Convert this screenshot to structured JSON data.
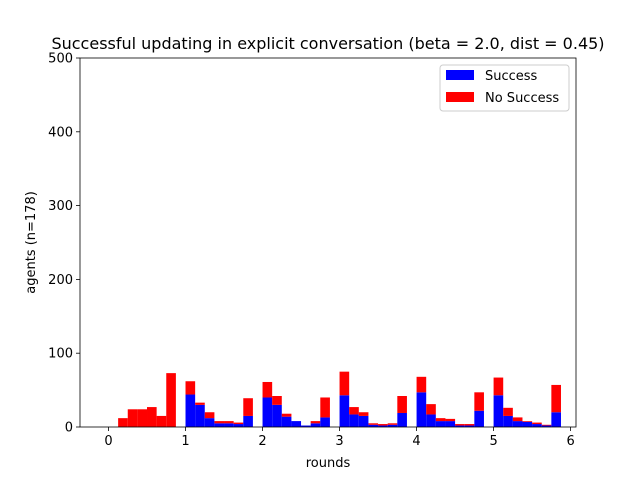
{
  "chart_data": {
    "type": "bar",
    "stacked": true,
    "title": "Successful updating in explicit conversation (beta = 2.0, dist = 0.45)",
    "xlabel": "rounds",
    "ylabel": "agents (n=178)",
    "xlim": [
      -0.37,
      6.07
    ],
    "ylim": [
      0,
      500
    ],
    "xticks": [
      0,
      1,
      2,
      3,
      4,
      5,
      6
    ],
    "xtick_labels": [
      "0",
      "1",
      "2",
      "3",
      "4",
      "5",
      "6"
    ],
    "yticks": [
      0,
      100,
      200,
      300,
      400,
      500
    ],
    "ytick_labels": [
      "0",
      "100",
      "200",
      "300",
      "400",
      "500"
    ],
    "bar_width": 0.125,
    "x": [
      0.0625,
      0.1875,
      0.3125,
      0.4375,
      0.5625,
      0.6875,
      0.8125,
      0.9375,
      1.0625,
      1.1875,
      1.3125,
      1.4375,
      1.5625,
      1.6875,
      1.8125,
      1.9375,
      2.0625,
      2.1875,
      2.3125,
      2.4375,
      2.5625,
      2.6875,
      2.8125,
      2.9375,
      3.0625,
      3.1875,
      3.3125,
      3.4375,
      3.5625,
      3.6875,
      3.8125,
      3.9375,
      4.0625,
      4.1875,
      4.3125,
      4.4375,
      4.5625,
      4.6875,
      4.8125,
      4.9375,
      5.0625,
      5.1875,
      5.3125,
      5.4375,
      5.5625,
      5.6875,
      5.8125
    ],
    "series": [
      {
        "name": "Success",
        "color": "#0000ff",
        "values": [
          0,
          0,
          0,
          0,
          0,
          0,
          0,
          0,
          44,
          30,
          12,
          5,
          5,
          4,
          15,
          0,
          40,
          30,
          14,
          8,
          2,
          5,
          13,
          0,
          43,
          17,
          15,
          3,
          2,
          3,
          19,
          0,
          47,
          17,
          8,
          8,
          2,
          2,
          22,
          0,
          43,
          15,
          8,
          7,
          4,
          2,
          20
        ]
      },
      {
        "name": "No Success",
        "color": "#ff0000",
        "values": [
          0,
          12,
          24,
          24,
          27,
          15,
          73,
          0,
          18,
          3,
          8,
          3,
          3,
          2,
          24,
          0,
          21,
          12,
          4,
          0,
          0,
          3,
          27,
          0,
          32,
          10,
          5,
          2,
          2,
          2,
          23,
          0,
          21,
          14,
          4,
          3,
          2,
          2,
          25,
          0,
          24,
          11,
          5,
          1,
          2,
          1,
          37
        ]
      }
    ],
    "legend": {
      "position": "top-right",
      "entries": [
        "Success",
        "No Success"
      ]
    },
    "grid": false
  }
}
